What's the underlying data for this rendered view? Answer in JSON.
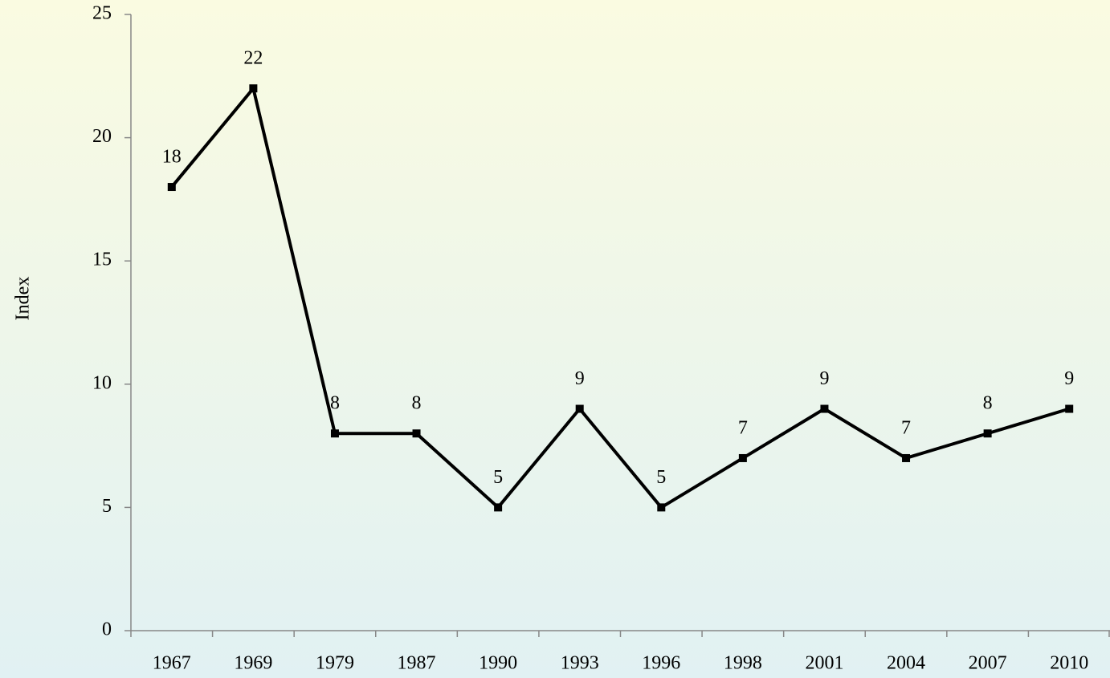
{
  "chart_data": {
    "type": "line",
    "y_label": "Index",
    "categories": [
      "1967",
      "1969",
      "1979",
      "1987",
      "1990",
      "1993",
      "1996",
      "1998",
      "2001",
      "2004",
      "2007",
      "2010"
    ],
    "values": [
      18,
      22,
      8,
      8,
      5,
      9,
      5,
      7,
      9,
      7,
      8,
      9
    ],
    "color": "#000000",
    "ylim": [
      0,
      25
    ],
    "yticks": [
      0,
      5,
      10,
      15,
      20,
      25
    ],
    "grid": false
  }
}
